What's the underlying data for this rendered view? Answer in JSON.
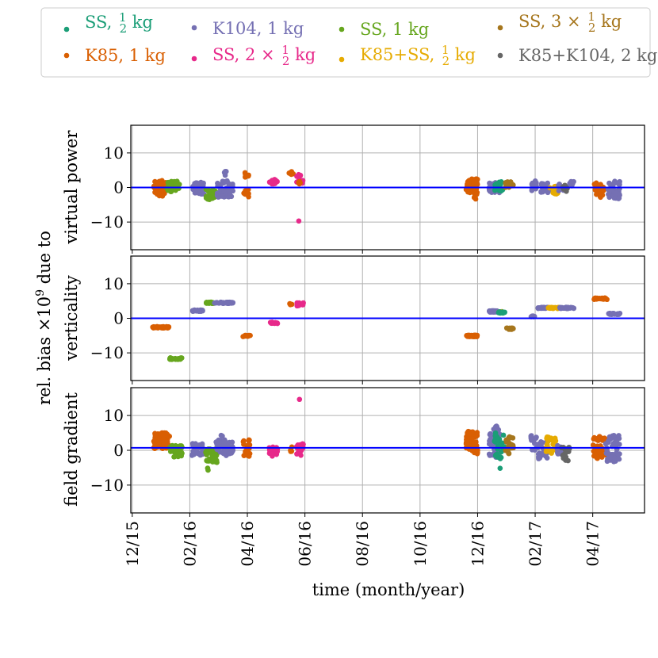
{
  "legend": {
    "entries": [
      {
        "key": "ss_half",
        "label_main": "SS, ",
        "frac_num": "1",
        "frac_den": "2",
        "label_post": " kg",
        "color": "#1b9e77"
      },
      {
        "key": "k85",
        "label_main": "K85, 1 kg",
        "color": "#d95f02"
      },
      {
        "key": "k104",
        "label_main": "K104, 1 kg",
        "color": "#7570b3"
      },
      {
        "key": "ss_2x_half",
        "label_main": "SS, 2 × ",
        "frac_num": "1",
        "frac_den": "2",
        "label_post": " kg",
        "color": "#e7298a"
      },
      {
        "key": "ss_1",
        "label_main": "SS, 1 kg",
        "color": "#66a61e"
      },
      {
        "key": "k85_ss_half",
        "label_main": "K85+SS, ",
        "frac_num": "1",
        "frac_den": "2",
        "label_post": " kg",
        "color": "#e6ab02"
      },
      {
        "key": "ss_3x_half",
        "label_main": "SS, 3 × ",
        "frac_num": "1",
        "frac_den": "2",
        "label_post": " kg",
        "color": "#a6761d"
      },
      {
        "key": "k85_k104",
        "label_main": "K85+K104, 2 kg",
        "color": "#666666"
      }
    ]
  },
  "chart_data": {
    "type": "scatter",
    "xlabel": "time (month/year)",
    "x_tick_labels": [
      "12/15",
      "02/16",
      "04/16",
      "06/16",
      "08/16",
      "10/16",
      "12/16",
      "02/17",
      "04/17"
    ],
    "x_tick_months": [
      0,
      2,
      4,
      6,
      8,
      10,
      12,
      14,
      16
    ],
    "xlim_months": [
      -0.05,
      17.8
    ],
    "shared_ylabel_line": "rel. bias ×10",
    "shared_ylabel_exp": "9",
    "shared_ylabel_tail": " due to",
    "panels": [
      {
        "key": "vp",
        "ylabel": "virtual power",
        "ylim": [
          -18,
          18
        ],
        "yticks": [
          -10,
          0,
          10
        ],
        "ytick_labels": [
          "−10",
          "0",
          "10"
        ],
        "hline": 0.0,
        "clusters": [
          {
            "series": "k85",
            "x": [
              0.75,
              1.2
            ],
            "y": [
              -2.5,
              2.0
            ],
            "n": 55
          },
          {
            "series": "ss_1",
            "x": [
              1.2,
              1.65
            ],
            "y": [
              -1.2,
              1.8
            ],
            "n": 40
          },
          {
            "series": "k104",
            "x": [
              2.1,
              2.5
            ],
            "y": [
              -2.0,
              1.5
            ],
            "n": 30
          },
          {
            "series": "ss_1",
            "x": [
              2.55,
              2.95
            ],
            "y": [
              -3.5,
              -0.5
            ],
            "n": 35
          },
          {
            "series": "k104",
            "x": [
              2.95,
              3.5
            ],
            "y": [
              -3.0,
              2.0
            ],
            "n": 45
          },
          {
            "series": "k104",
            "x": [
              3.15,
              3.3
            ],
            "y": [
              3.5,
              4.8
            ],
            "n": 6
          },
          {
            "series": "k85",
            "x": [
              3.85,
              4.05
            ],
            "y": [
              -3.0,
              -0.5
            ],
            "n": 12
          },
          {
            "series": "k85",
            "x": [
              3.9,
              4.05
            ],
            "y": [
              3.0,
              4.5
            ],
            "n": 8
          },
          {
            "series": "ss_2x_half",
            "x": [
              4.7,
              5.05
            ],
            "y": [
              1.0,
              2.4
            ],
            "n": 12
          },
          {
            "series": "k85",
            "x": [
              5.45,
              5.6
            ],
            "y": [
              3.8,
              4.8
            ],
            "n": 6
          },
          {
            "series": "ss_2x_half",
            "x": [
              5.7,
              5.95
            ],
            "y": [
              1.2,
              3.8
            ],
            "n": 12
          },
          {
            "series": "k85",
            "x": [
              5.75,
              5.85
            ],
            "y": [
              1.0,
              2.5
            ],
            "n": 4
          },
          {
            "series": "ss_2x_half",
            "x": [
              5.78,
              5.82
            ],
            "y": [
              -9.8,
              -9.6
            ],
            "n": 1
          },
          {
            "series": "k85",
            "x": [
              11.6,
              12.0
            ],
            "y": [
              -2.0,
              2.5
            ],
            "n": 60
          },
          {
            "series": "k85",
            "x": [
              11.85,
              11.95
            ],
            "y": [
              -3.5,
              -2.0
            ],
            "n": 3
          },
          {
            "series": "k104",
            "x": [
              12.4,
              12.8
            ],
            "y": [
              -1.5,
              1.5
            ],
            "n": 45
          },
          {
            "series": "ss_half",
            "x": [
              12.6,
              12.9
            ],
            "y": [
              -1.0,
              2.0
            ],
            "n": 20
          },
          {
            "series": "ss_3x_half",
            "x": [
              12.95,
              13.25
            ],
            "y": [
              0.0,
              1.8
            ],
            "n": 18
          },
          {
            "series": "k104",
            "x": [
              13.85,
              14.05
            ],
            "y": [
              -1.0,
              2.0
            ],
            "n": 15
          },
          {
            "series": "k104",
            "x": [
              14.2,
              14.55
            ],
            "y": [
              -1.5,
              1.5
            ],
            "n": 20
          },
          {
            "series": "k85_ss_half",
            "x": [
              14.5,
              14.8
            ],
            "y": [
              -2.0,
              0.5
            ],
            "n": 20
          },
          {
            "series": "k104",
            "x": [
              14.8,
              15.0
            ],
            "y": [
              -1.0,
              1.0
            ],
            "n": 10
          },
          {
            "series": "k85_k104",
            "x": [
              14.95,
              15.15
            ],
            "y": [
              -1.2,
              0.8
            ],
            "n": 10
          },
          {
            "series": "k104",
            "x": [
              15.2,
              15.35
            ],
            "y": [
              0.0,
              2.0
            ],
            "n": 8
          },
          {
            "series": "k85",
            "x": [
              16.05,
              16.4
            ],
            "y": [
              -2.0,
              1.5
            ],
            "n": 25
          },
          {
            "series": "k85",
            "x": [
              16.25,
              16.45
            ],
            "y": [
              -3.0,
              -1.0
            ],
            "n": 8
          },
          {
            "series": "k104",
            "x": [
              16.5,
              16.95
            ],
            "y": [
              -3.5,
              2.0
            ],
            "n": 40
          }
        ]
      },
      {
        "key": "vert",
        "ylabel": "verticality",
        "ylim": [
          -18,
          18
        ],
        "yticks": [
          -10,
          0,
          10
        ],
        "ytick_labels": [
          "−10",
          "0",
          "10"
        ],
        "hline": 0.0,
        "clusters": [
          {
            "series": "k85",
            "x": [
              0.7,
              1.3
            ],
            "y": [
              -2.8,
              -2.4
            ],
            "n": 40
          },
          {
            "series": "ss_1",
            "x": [
              1.3,
              1.75
            ],
            "y": [
              -11.9,
              -11.4
            ],
            "n": 30
          },
          {
            "series": "k104",
            "x": [
              2.05,
              2.45
            ],
            "y": [
              2.0,
              2.4
            ],
            "n": 25
          },
          {
            "series": "ss_1",
            "x": [
              2.55,
              2.85
            ],
            "y": [
              4.3,
              4.7
            ],
            "n": 20
          },
          {
            "series": "k104",
            "x": [
              2.85,
              3.5
            ],
            "y": [
              4.3,
              4.7
            ],
            "n": 40
          },
          {
            "series": "k85",
            "x": [
              3.85,
              4.1
            ],
            "y": [
              -5.3,
              -4.9
            ],
            "n": 15
          },
          {
            "series": "ss_2x_half",
            "x": [
              4.75,
              5.05
            ],
            "y": [
              -1.5,
              -1.1
            ],
            "n": 15
          },
          {
            "series": "k85",
            "x": [
              5.45,
              5.55
            ],
            "y": [
              3.9,
              4.3
            ],
            "n": 4
          },
          {
            "series": "ss_2x_half",
            "x": [
              5.7,
              5.95
            ],
            "y": [
              3.6,
              4.6
            ],
            "n": 20
          },
          {
            "series": "k85",
            "x": [
              11.6,
              12.0
            ],
            "y": [
              -5.3,
              -4.9
            ],
            "n": 40
          },
          {
            "series": "k104",
            "x": [
              12.4,
              12.7
            ],
            "y": [
              1.8,
              2.2
            ],
            "n": 25
          },
          {
            "series": "k85_ss_half",
            "x": [
              12.7,
              12.85
            ],
            "y": [
              1.6,
              2.0
            ],
            "n": 8
          },
          {
            "series": "ss_half",
            "x": [
              12.7,
              12.95
            ],
            "y": [
              1.5,
              1.9
            ],
            "n": 12
          },
          {
            "series": "ss_3x_half",
            "x": [
              13.0,
              13.25
            ],
            "y": [
              -3.2,
              -2.8
            ],
            "n": 15
          },
          {
            "series": "k104",
            "x": [
              13.85,
              14.0
            ],
            "y": [
              0.4,
              0.7
            ],
            "n": 8
          },
          {
            "series": "k104",
            "x": [
              14.1,
              14.45
            ],
            "y": [
              2.8,
              3.2
            ],
            "n": 25
          },
          {
            "series": "k85_ss_half",
            "x": [
              14.45,
              14.85
            ],
            "y": [
              2.8,
              3.2
            ],
            "n": 25
          },
          {
            "series": "k104",
            "x": [
              14.85,
              15.35
            ],
            "y": [
              2.8,
              3.2
            ],
            "n": 30
          },
          {
            "series": "k85",
            "x": [
              16.05,
              16.5
            ],
            "y": [
              5.4,
              5.9
            ],
            "n": 30
          },
          {
            "series": "k104",
            "x": [
              16.55,
              16.95
            ],
            "y": [
              1.1,
              1.5
            ],
            "n": 25
          }
        ]
      },
      {
        "key": "fg",
        "ylabel": "field gradient",
        "ylim": [
          -18,
          18
        ],
        "yticks": [
          -10,
          0,
          10
        ],
        "ytick_labels": [
          "−10",
          "0",
          "10"
        ],
        "hline": 0.7,
        "clusters": [
          {
            "series": "k85",
            "x": [
              0.75,
              1.3
            ],
            "y": [
              0.5,
              5.0
            ],
            "n": 70
          },
          {
            "series": "ss_1",
            "x": [
              1.3,
              1.75
            ],
            "y": [
              -2.0,
              1.5
            ],
            "n": 35
          },
          {
            "series": "k104",
            "x": [
              2.05,
              2.45
            ],
            "y": [
              -1.5,
              2.0
            ],
            "n": 30
          },
          {
            "series": "ss_1",
            "x": [
              2.55,
              2.95
            ],
            "y": [
              -3.5,
              0.5
            ],
            "n": 35
          },
          {
            "series": "ss_1",
            "x": [
              2.6,
              2.7
            ],
            "y": [
              -6.0,
              -5.0
            ],
            "n": 2
          },
          {
            "series": "k104",
            "x": [
              2.9,
              3.5
            ],
            "y": [
              -1.5,
              3.0
            ],
            "n": 50
          },
          {
            "series": "k104",
            "x": [
              3.05,
              3.15
            ],
            "y": [
              3.5,
              4.5
            ],
            "n": 2
          },
          {
            "series": "k85",
            "x": [
              3.85,
              4.1
            ],
            "y": [
              -2.0,
              3.5
            ],
            "n": 25
          },
          {
            "series": "ss_2x_half",
            "x": [
              4.75,
              5.05
            ],
            "y": [
              -2.0,
              1.0
            ],
            "n": 20
          },
          {
            "series": "k85",
            "x": [
              5.45,
              5.55
            ],
            "y": [
              -0.5,
              1.0
            ],
            "n": 4
          },
          {
            "series": "ss_2x_half",
            "x": [
              5.7,
              5.95
            ],
            "y": [
              -1.5,
              2.0
            ],
            "n": 25
          },
          {
            "series": "ss_2x_half",
            "x": [
              5.78,
              5.82
            ],
            "y": [
              14.5,
              14.7
            ],
            "n": 1
          },
          {
            "series": "k85",
            "x": [
              11.6,
              12.0
            ],
            "y": [
              -1.0,
              5.5
            ],
            "n": 70
          },
          {
            "series": "k104",
            "x": [
              12.4,
              12.8
            ],
            "y": [
              -2.0,
              7.0
            ],
            "n": 60
          },
          {
            "series": "ss_half",
            "x": [
              12.55,
              12.95
            ],
            "y": [
              -2.5,
              5.0
            ],
            "n": 30
          },
          {
            "series": "ss_half",
            "x": [
              12.7,
              12.8
            ],
            "y": [
              -5.2,
              -4.8
            ],
            "n": 1
          },
          {
            "series": "ss_3x_half",
            "x": [
              12.9,
              13.25
            ],
            "y": [
              -1.0,
              4.0
            ],
            "n": 25
          },
          {
            "series": "k104",
            "x": [
              13.85,
              14.05
            ],
            "y": [
              -0.5,
              4.5
            ],
            "n": 15
          },
          {
            "series": "k104",
            "x": [
              14.1,
              14.45
            ],
            "y": [
              -2.5,
              2.5
            ],
            "n": 25
          },
          {
            "series": "k85_ss_half",
            "x": [
              14.35,
              14.75
            ],
            "y": [
              -1.0,
              4.0
            ],
            "n": 30
          },
          {
            "series": "k104",
            "x": [
              14.75,
              15.0
            ],
            "y": [
              -1.5,
              1.5
            ],
            "n": 15
          },
          {
            "series": "k85_k104",
            "x": [
              14.9,
              15.3
            ],
            "y": [
              -3.0,
              1.0
            ],
            "n": 20
          },
          {
            "series": "k85",
            "x": [
              16.0,
              16.45
            ],
            "y": [
              -2.5,
              4.0
            ],
            "n": 40
          },
          {
            "series": "k104",
            "x": [
              16.45,
              16.95
            ],
            "y": [
              -3.5,
              4.5
            ],
            "n": 50
          }
        ]
      }
    ]
  }
}
